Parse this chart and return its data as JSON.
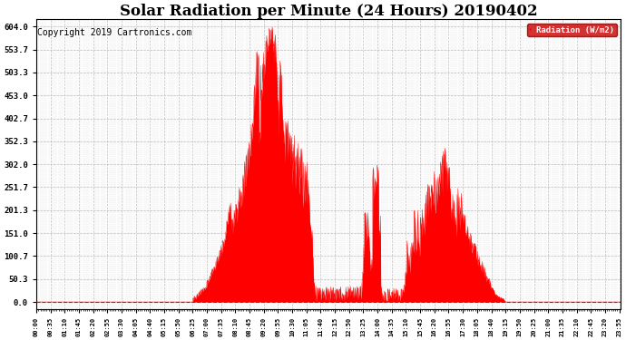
{
  "title": "Solar Radiation per Minute (24 Hours) 20190402",
  "copyright_text": "Copyright 2019 Cartronics.com",
  "legend_label": "Radiation (W/m2)",
  "ylabel_values": [
    0.0,
    50.3,
    100.7,
    151.0,
    201.3,
    251.7,
    302.0,
    352.3,
    402.7,
    453.0,
    503.3,
    553.7,
    604.0
  ],
  "ymax": 620,
  "fill_color": "#FF0000",
  "line_color": "#FF0000",
  "grid_color": "#AAAAAA",
  "background_color": "#FFFFFF",
  "title_fontsize": 12,
  "copyright_fontsize": 7,
  "legend_bg": "#CC0000",
  "legend_text_color": "#FFFFFF",
  "xlim_min": 0,
  "xlim_max": 1439
}
